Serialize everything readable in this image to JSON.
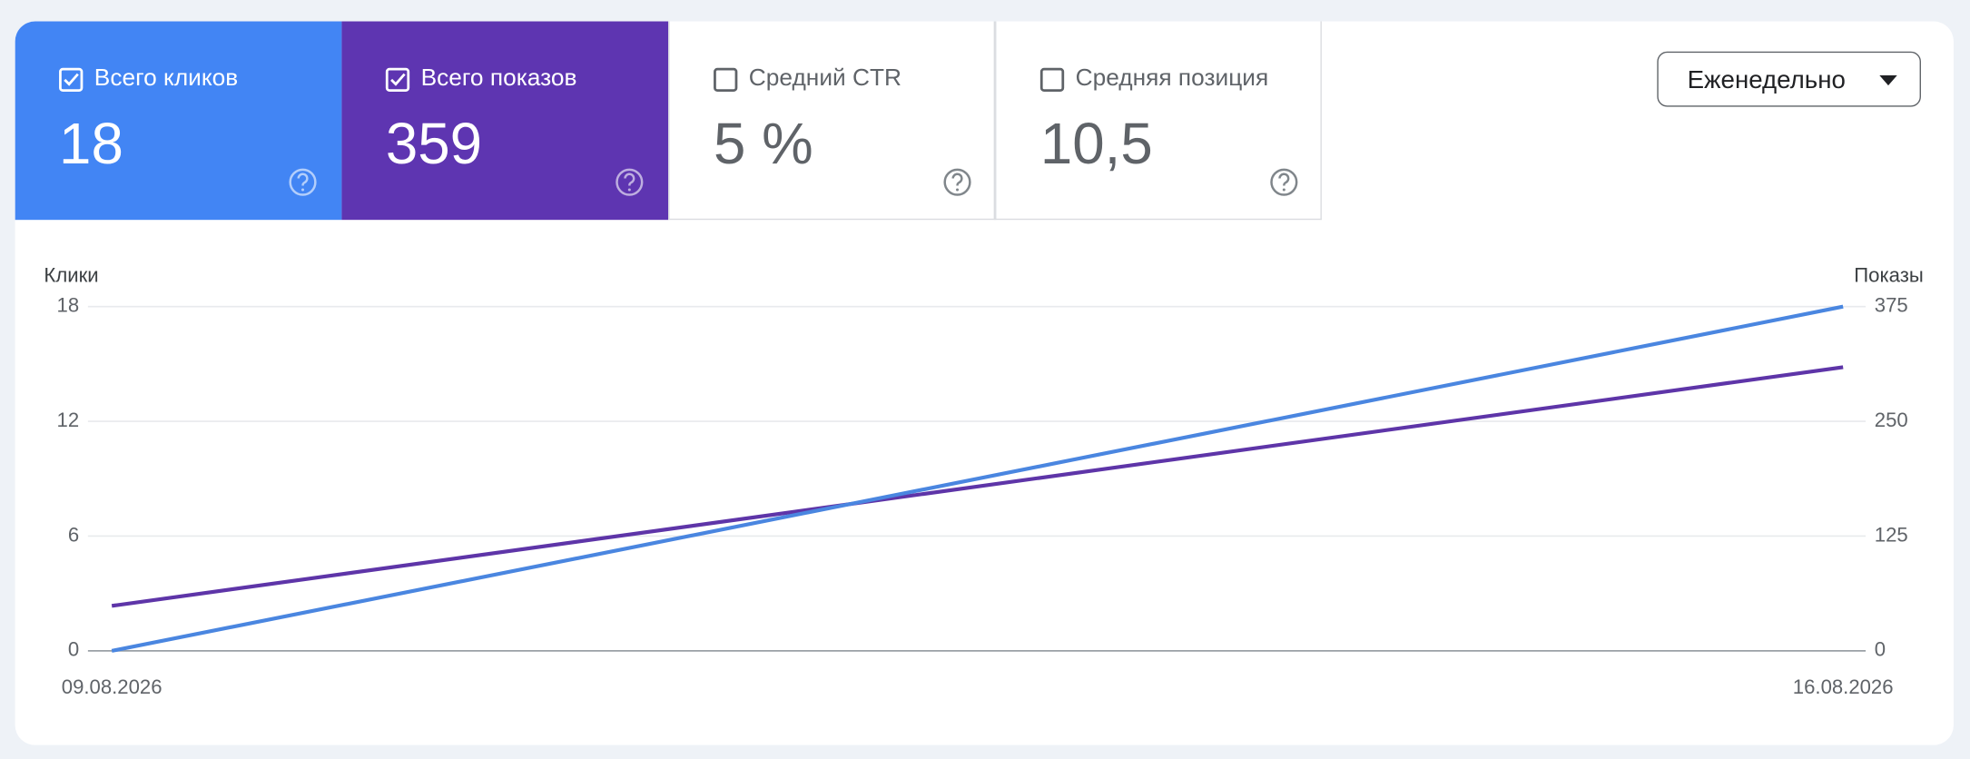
{
  "cards": [
    {
      "label": "Всего кликов",
      "value": "18",
      "checked": true
    },
    {
      "label": "Всего показов",
      "value": "359",
      "checked": true
    },
    {
      "label": "Средний CTR",
      "value": "5 %",
      "checked": false
    },
    {
      "label": "Средняя позиция",
      "value": "10,5",
      "checked": false
    }
  ],
  "dropdown": {
    "label": "Еженедельно"
  },
  "chart_data": {
    "type": "line",
    "y_label": "Клики",
    "y2_label": "Показы",
    "categories": [
      "09.08.2026",
      "16.08.2026"
    ],
    "series": [
      {
        "color": "#5e35a8",
        "values": [
          49,
          309
        ],
        "axis": "y2"
      },
      {
        "color": "#4a86e0",
        "values": [
          0,
          18
        ],
        "axis": "y"
      }
    ],
    "ylim": [
      0,
      18
    ],
    "yticks": [
      0,
      6,
      12,
      18
    ],
    "y2lim": [
      0,
      375
    ],
    "y2ticks": [
      0,
      125,
      250,
      375
    ],
    "grid": true
  }
}
